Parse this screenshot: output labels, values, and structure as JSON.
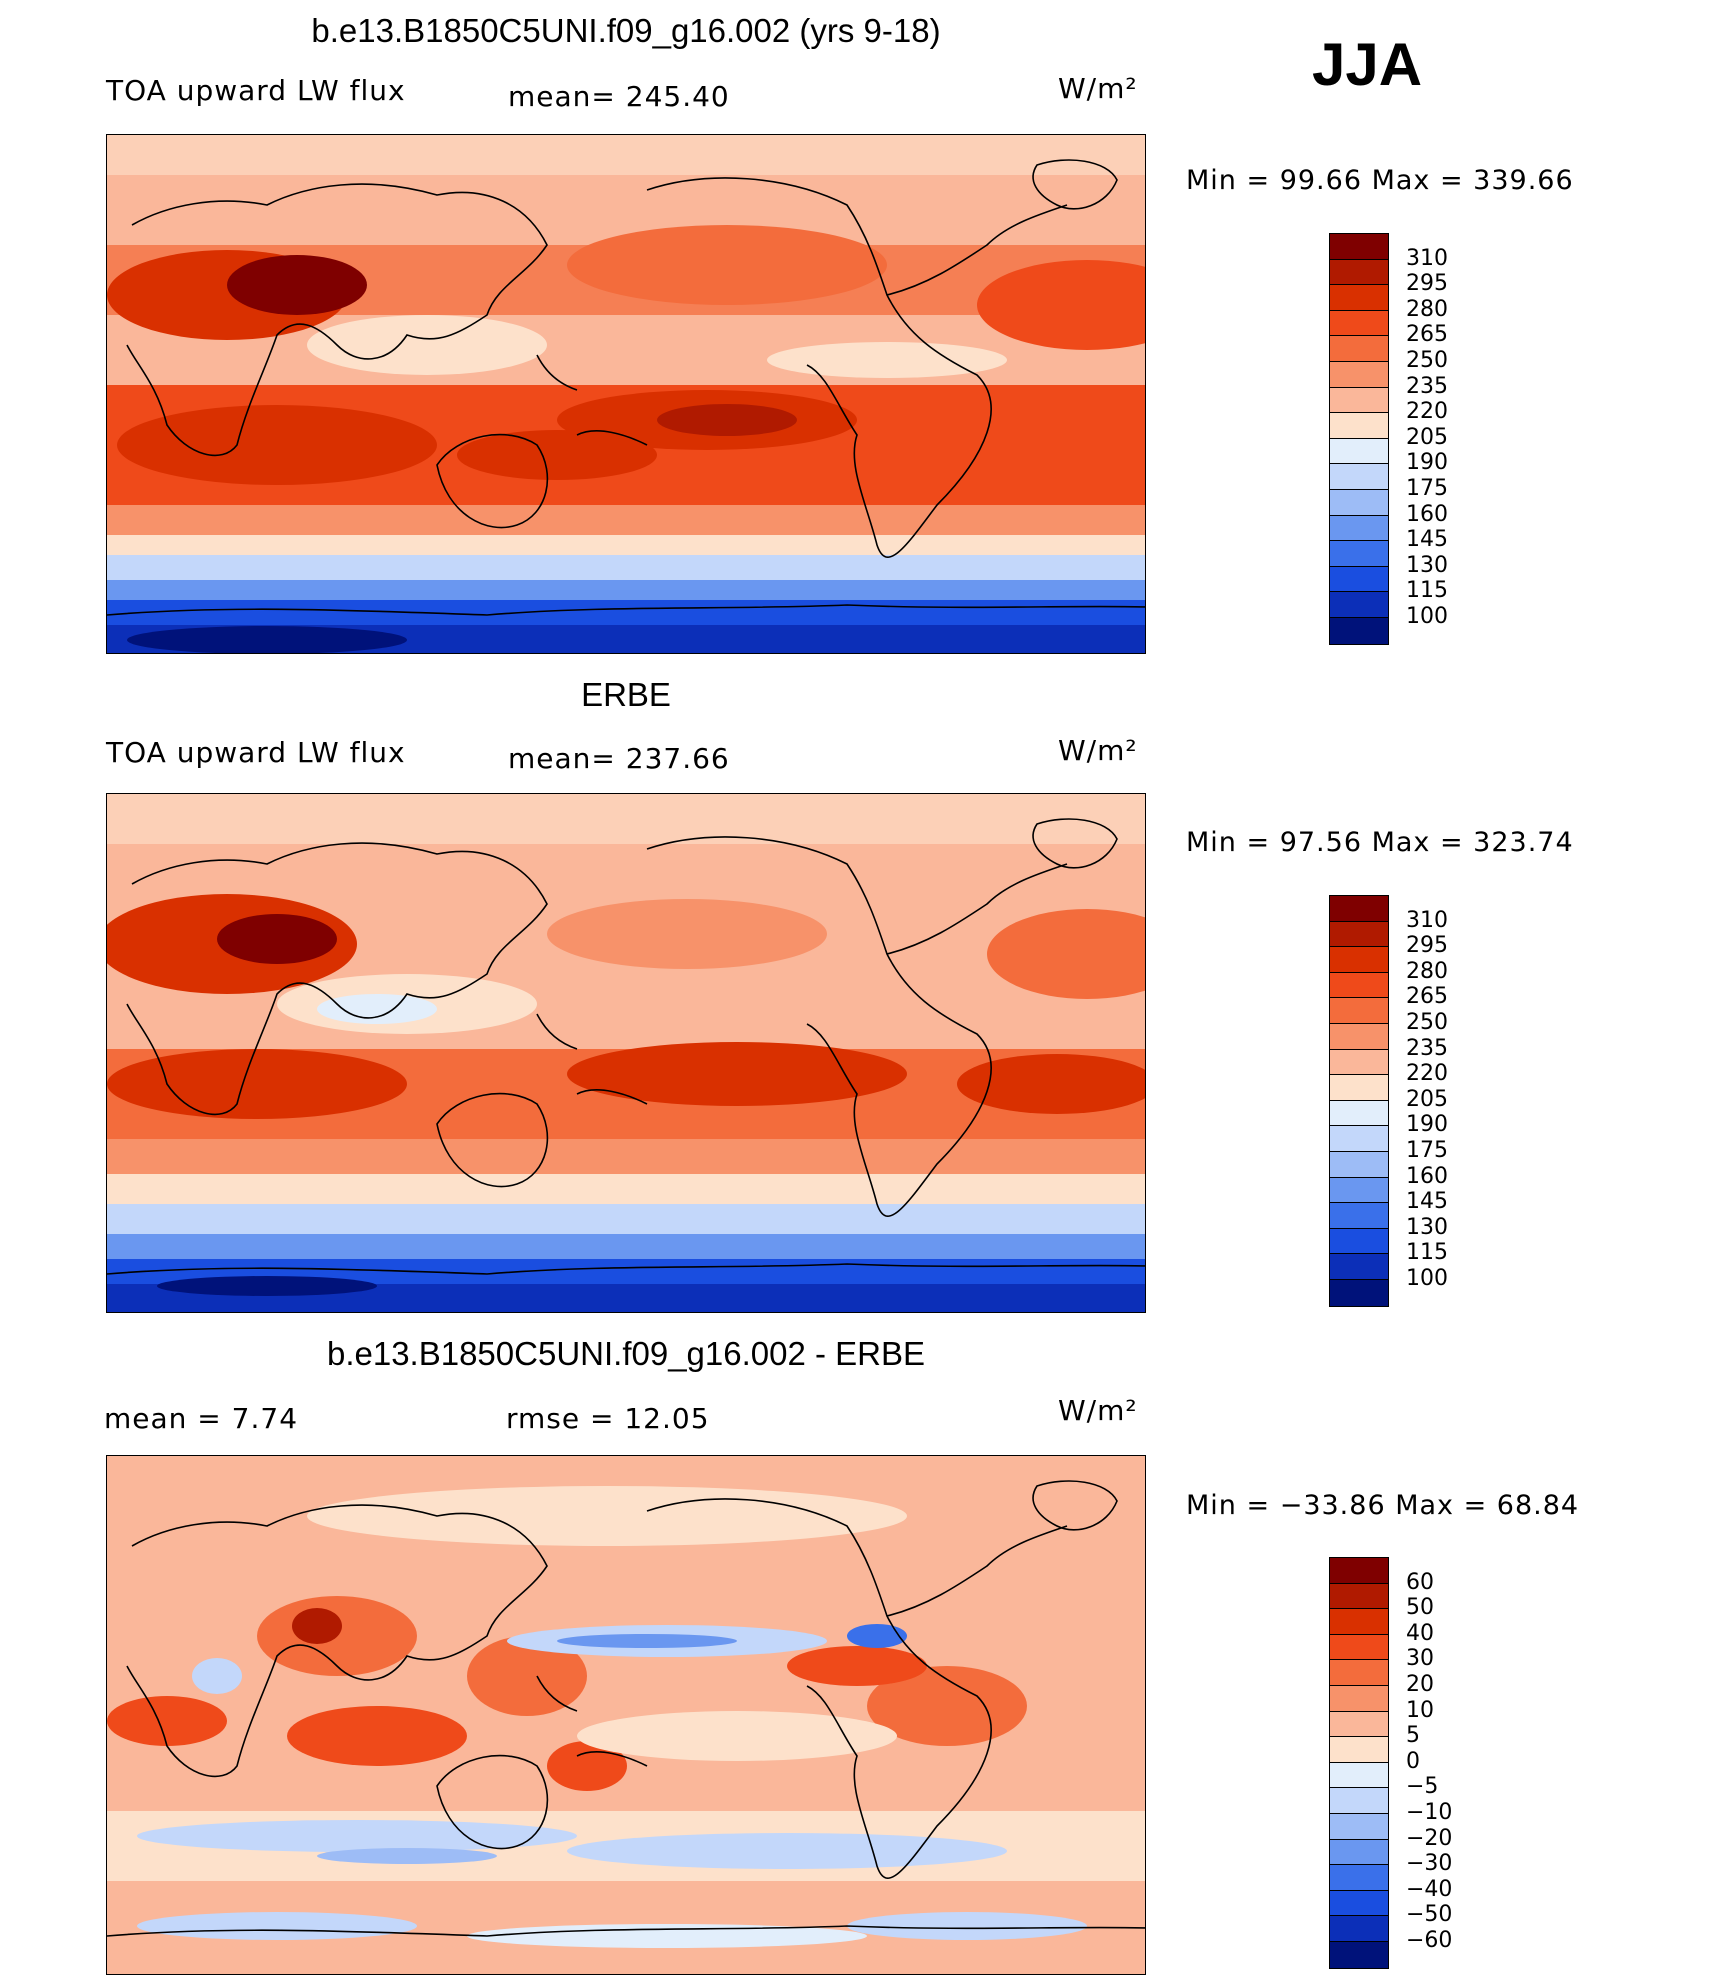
{
  "season": "JJA",
  "units": "W/m²",
  "panels": [
    {
      "title": "b.e13.B1850C5UNI.f09_g16.002 (yrs 9-18)",
      "left_label": "TOA upward LW flux",
      "mid_label": "mean= 245.40",
      "units": "W/m²",
      "minmax": "Min =   99.66  Max  =  339.66",
      "colorbar": {
        "labels": [
          "310",
          "295",
          "280",
          "265",
          "250",
          "235",
          "220",
          "205",
          "190",
          "175",
          "160",
          "145",
          "130",
          "115",
          "100"
        ],
        "colors": [
          "#7f0000",
          "#b01a00",
          "#d93000",
          "#ef4a1a",
          "#f36c3c",
          "#f7926a",
          "#fab79a",
          "#fde1cb",
          "#e2eefb",
          "#c3d7fa",
          "#9dbcf6",
          "#6a97f0",
          "#3a70ea",
          "#1a4ee0",
          "#0c2fb8",
          "#00127a"
        ]
      }
    },
    {
      "title": "ERBE",
      "left_label": "TOA upward LW flux",
      "mid_label": "mean= 237.66",
      "units": "W/m²",
      "minmax": "Min =   97.56  Max  =  323.74",
      "colorbar": {
        "labels": [
          "310",
          "295",
          "280",
          "265",
          "250",
          "235",
          "220",
          "205",
          "190",
          "175",
          "160",
          "145",
          "130",
          "115",
          "100"
        ],
        "colors": [
          "#7f0000",
          "#b01a00",
          "#d93000",
          "#ef4a1a",
          "#f36c3c",
          "#f7926a",
          "#fab79a",
          "#fde1cb",
          "#e2eefb",
          "#c3d7fa",
          "#9dbcf6",
          "#6a97f0",
          "#3a70ea",
          "#1a4ee0",
          "#0c2fb8",
          "#00127a"
        ]
      }
    },
    {
      "title": "b.e13.B1850C5UNI.f09_g16.002 - ERBE",
      "left_label": "mean =     7.74",
      "mid_label": "rmse =    12.05",
      "units": "W/m²",
      "minmax": "Min = −33.86  Max  =   68.84",
      "colorbar": {
        "labels": [
          "60",
          "50",
          "40",
          "30",
          "20",
          "10",
          "5",
          "0",
          "−5",
          "−10",
          "−20",
          "−30",
          "−40",
          "−50",
          "−60"
        ],
        "colors": [
          "#7f0000",
          "#b01a00",
          "#d93000",
          "#ef4a1a",
          "#f36c3c",
          "#f7926a",
          "#fab79a",
          "#fde1cb",
          "#e2eefb",
          "#c3d7fa",
          "#9dbcf6",
          "#6a97f0",
          "#3a70ea",
          "#1a4ee0",
          "#0c2fb8",
          "#00127a"
        ]
      }
    }
  ]
}
